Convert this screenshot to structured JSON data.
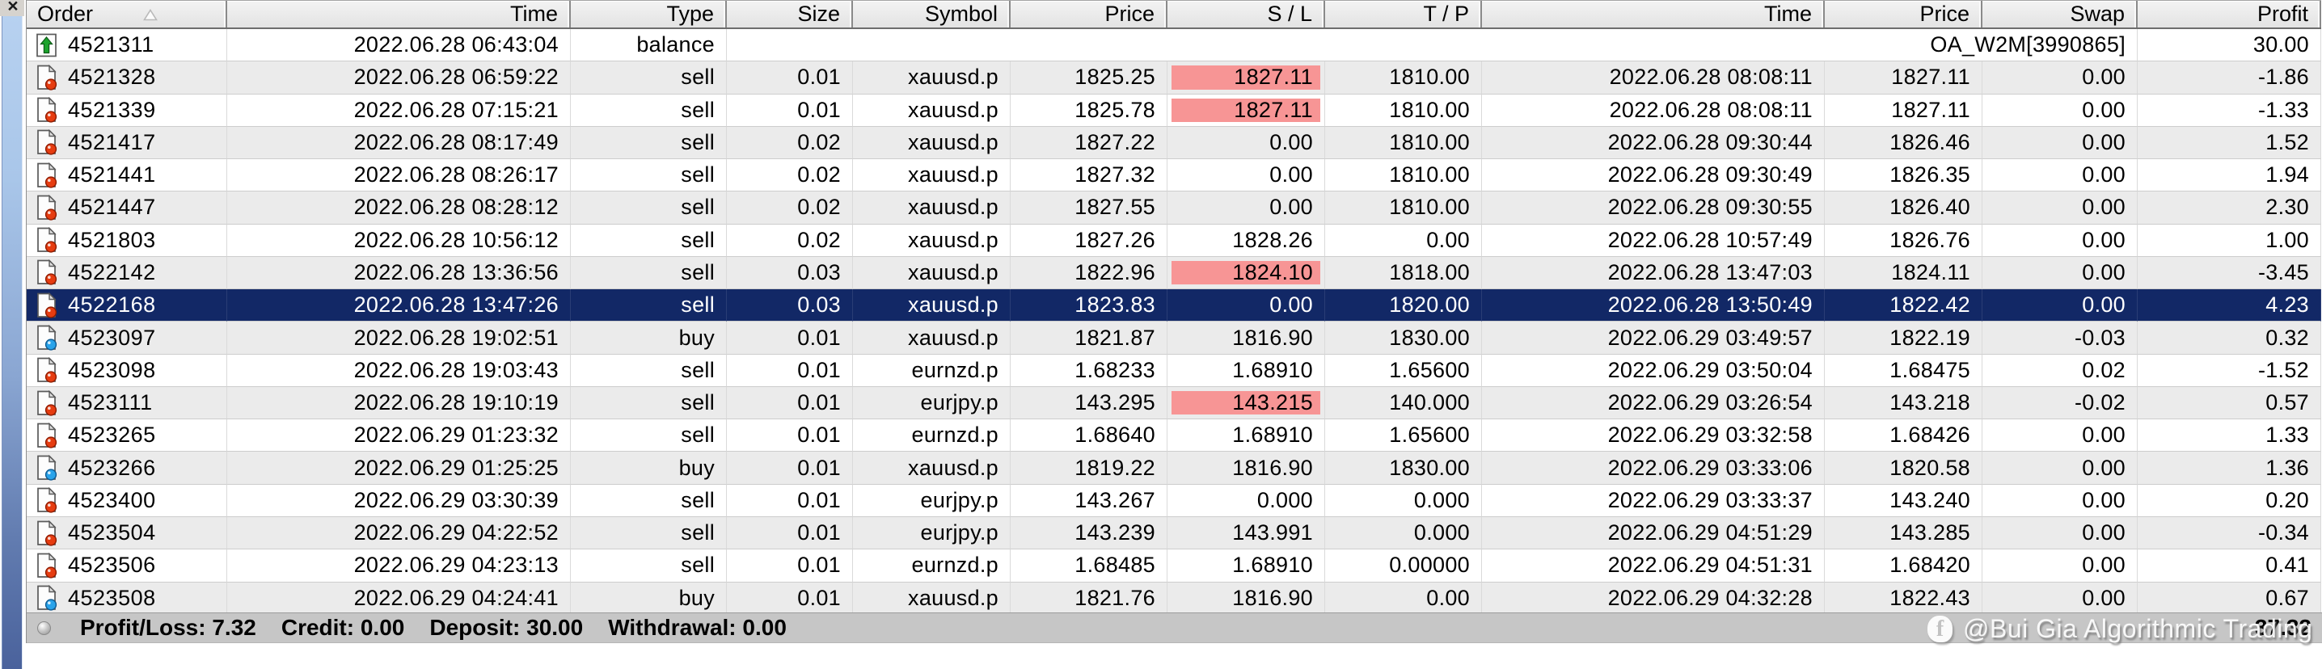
{
  "panel": {
    "close_button": "×"
  },
  "account_history": {
    "sort": {
      "column": "Order",
      "direction": "asc"
    },
    "columns": [
      {
        "id": "order",
        "label": "Order",
        "align": "left"
      },
      {
        "id": "open_time",
        "label": "Time",
        "align": "right"
      },
      {
        "id": "type",
        "label": "Type",
        "align": "right"
      },
      {
        "id": "size",
        "label": "Size",
        "align": "right"
      },
      {
        "id": "symbol",
        "label": "Symbol",
        "align": "right"
      },
      {
        "id": "open_price",
        "label": "Price",
        "align": "right"
      },
      {
        "id": "sl",
        "label": "S / L",
        "align": "right"
      },
      {
        "id": "tp",
        "label": "T / P",
        "align": "right"
      },
      {
        "id": "close_time",
        "label": "Time",
        "align": "right"
      },
      {
        "id": "close_price",
        "label": "Price",
        "align": "right"
      },
      {
        "id": "swap",
        "label": "Swap",
        "align": "right"
      },
      {
        "id": "profit",
        "label": "Profit",
        "align": "right"
      }
    ],
    "rows": [
      {
        "order": "4521311",
        "icon": "balance-order-icon",
        "open_time": "2022.06.28 06:43:04",
        "type": "balance",
        "size": "",
        "symbol": "",
        "open_price": "",
        "sl": "",
        "sl_hit": false,
        "tp": "",
        "close_time": "",
        "close_price": "",
        "swap": "OA_W2M[3990865]",
        "profit": "30.00",
        "selected": false
      },
      {
        "order": "4521328",
        "icon": "sell-order-icon",
        "open_time": "2022.06.28 06:59:22",
        "type": "sell",
        "size": "0.01",
        "symbol": "xauusd.p",
        "open_price": "1825.25",
        "sl": "1827.11",
        "sl_hit": true,
        "tp": "1810.00",
        "close_time": "2022.06.28 08:08:11",
        "close_price": "1827.11",
        "swap": "0.00",
        "profit": "-1.86",
        "selected": false
      },
      {
        "order": "4521339",
        "icon": "sell-order-icon",
        "open_time": "2022.06.28 07:15:21",
        "type": "sell",
        "size": "0.01",
        "symbol": "xauusd.p",
        "open_price": "1825.78",
        "sl": "1827.11",
        "sl_hit": true,
        "tp": "1810.00",
        "close_time": "2022.06.28 08:08:11",
        "close_price": "1827.11",
        "swap": "0.00",
        "profit": "-1.33",
        "selected": false
      },
      {
        "order": "4521417",
        "icon": "sell-order-icon",
        "open_time": "2022.06.28 08:17:49",
        "type": "sell",
        "size": "0.02",
        "symbol": "xauusd.p",
        "open_price": "1827.22",
        "sl": "0.00",
        "sl_hit": false,
        "tp": "1810.00",
        "close_time": "2022.06.28 09:30:44",
        "close_price": "1826.46",
        "swap": "0.00",
        "profit": "1.52",
        "selected": false
      },
      {
        "order": "4521441",
        "icon": "sell-order-icon",
        "open_time": "2022.06.28 08:26:17",
        "type": "sell",
        "size": "0.02",
        "symbol": "xauusd.p",
        "open_price": "1827.32",
        "sl": "0.00",
        "sl_hit": false,
        "tp": "1810.00",
        "close_time": "2022.06.28 09:30:49",
        "close_price": "1826.35",
        "swap": "0.00",
        "profit": "1.94",
        "selected": false
      },
      {
        "order": "4521447",
        "icon": "sell-order-icon",
        "open_time": "2022.06.28 08:28:12",
        "type": "sell",
        "size": "0.02",
        "symbol": "xauusd.p",
        "open_price": "1827.55",
        "sl": "0.00",
        "sl_hit": false,
        "tp": "1810.00",
        "close_time": "2022.06.28 09:30:55",
        "close_price": "1826.40",
        "swap": "0.00",
        "profit": "2.30",
        "selected": false
      },
      {
        "order": "4521803",
        "icon": "sell-order-icon",
        "open_time": "2022.06.28 10:56:12",
        "type": "sell",
        "size": "0.02",
        "symbol": "xauusd.p",
        "open_price": "1827.26",
        "sl": "1828.26",
        "sl_hit": false,
        "tp": "0.00",
        "close_time": "2022.06.28 10:57:49",
        "close_price": "1826.76",
        "swap": "0.00",
        "profit": "1.00",
        "selected": false
      },
      {
        "order": "4522142",
        "icon": "sell-order-icon",
        "open_time": "2022.06.28 13:36:56",
        "type": "sell",
        "size": "0.03",
        "symbol": "xauusd.p",
        "open_price": "1822.96",
        "sl": "1824.10",
        "sl_hit": true,
        "tp": "1818.00",
        "close_time": "2022.06.28 13:47:03",
        "close_price": "1824.11",
        "swap": "0.00",
        "profit": "-3.45",
        "selected": false
      },
      {
        "order": "4522168",
        "icon": "sell-order-icon",
        "open_time": "2022.06.28 13:47:26",
        "type": "sell",
        "size": "0.03",
        "symbol": "xauusd.p",
        "open_price": "1823.83",
        "sl": "0.00",
        "sl_hit": false,
        "tp": "1820.00",
        "close_time": "2022.06.28 13:50:49",
        "close_price": "1822.42",
        "swap": "0.00",
        "profit": "4.23",
        "selected": true
      },
      {
        "order": "4523097",
        "icon": "buy-order-icon",
        "open_time": "2022.06.28 19:02:51",
        "type": "buy",
        "size": "0.01",
        "symbol": "xauusd.p",
        "open_price": "1821.87",
        "sl": "1816.90",
        "sl_hit": false,
        "tp": "1830.00",
        "close_time": "2022.06.29 03:49:57",
        "close_price": "1822.19",
        "swap": "-0.03",
        "profit": "0.32",
        "selected": false
      },
      {
        "order": "4523098",
        "icon": "sell-order-icon",
        "open_time": "2022.06.28 19:03:43",
        "type": "sell",
        "size": "0.01",
        "symbol": "eurnzd.p",
        "open_price": "1.68233",
        "sl": "1.68910",
        "sl_hit": false,
        "tp": "1.65600",
        "close_time": "2022.06.29 03:50:04",
        "close_price": "1.68475",
        "swap": "0.02",
        "profit": "-1.52",
        "selected": false
      },
      {
        "order": "4523111",
        "icon": "sell-order-icon",
        "open_time": "2022.06.28 19:10:19",
        "type": "sell",
        "size": "0.01",
        "symbol": "eurjpy.p",
        "open_price": "143.295",
        "sl": "143.215",
        "sl_hit": true,
        "tp": "140.000",
        "close_time": "2022.06.29 03:26:54",
        "close_price": "143.218",
        "swap": "-0.02",
        "profit": "0.57",
        "selected": false
      },
      {
        "order": "4523265",
        "icon": "sell-order-icon",
        "open_time": "2022.06.29 01:23:32",
        "type": "sell",
        "size": "0.01",
        "symbol": "eurnzd.p",
        "open_price": "1.68640",
        "sl": "1.68910",
        "sl_hit": false,
        "tp": "1.65600",
        "close_time": "2022.06.29 03:32:58",
        "close_price": "1.68426",
        "swap": "0.00",
        "profit": "1.33",
        "selected": false
      },
      {
        "order": "4523266",
        "icon": "buy-order-icon",
        "open_time": "2022.06.29 01:25:25",
        "type": "buy",
        "size": "0.01",
        "symbol": "xauusd.p",
        "open_price": "1819.22",
        "sl": "1816.90",
        "sl_hit": false,
        "tp": "1830.00",
        "close_time": "2022.06.29 03:33:06",
        "close_price": "1820.58",
        "swap": "0.00",
        "profit": "1.36",
        "selected": false
      },
      {
        "order": "4523400",
        "icon": "sell-order-icon",
        "open_time": "2022.06.29 03:30:39",
        "type": "sell",
        "size": "0.01",
        "symbol": "eurjpy.p",
        "open_price": "143.267",
        "sl": "0.000",
        "sl_hit": false,
        "tp": "0.000",
        "close_time": "2022.06.29 03:33:37",
        "close_price": "143.240",
        "swap": "0.00",
        "profit": "0.20",
        "selected": false
      },
      {
        "order": "4523504",
        "icon": "sell-order-icon",
        "open_time": "2022.06.29 04:22:52",
        "type": "sell",
        "size": "0.01",
        "symbol": "eurjpy.p",
        "open_price": "143.239",
        "sl": "143.991",
        "sl_hit": false,
        "tp": "0.000",
        "close_time": "2022.06.29 04:51:29",
        "close_price": "143.285",
        "swap": "0.00",
        "profit": "-0.34",
        "selected": false
      },
      {
        "order": "4523506",
        "icon": "sell-order-icon",
        "open_time": "2022.06.29 04:23:13",
        "type": "sell",
        "size": "0.01",
        "symbol": "eurnzd.p",
        "open_price": "1.68485",
        "sl": "1.68910",
        "sl_hit": false,
        "tp": "0.00000",
        "close_time": "2022.06.29 04:51:31",
        "close_price": "1.68420",
        "swap": "0.00",
        "profit": "0.41",
        "selected": false
      },
      {
        "order": "4523508",
        "icon": "buy-order-icon",
        "open_time": "2022.06.29 04:24:41",
        "type": "buy",
        "size": "0.01",
        "symbol": "xauusd.p",
        "open_price": "1821.76",
        "sl": "1816.90",
        "sl_hit": false,
        "tp": "0.00",
        "close_time": "2022.06.29 04:32:28",
        "close_price": "1822.43",
        "swap": "0.00",
        "profit": "0.67",
        "selected": false
      }
    ]
  },
  "summary": {
    "items": [
      {
        "label": "Profit/Loss:",
        "value": "7.32"
      },
      {
        "label": "Credit:",
        "value": "0.00"
      },
      {
        "label": "Deposit:",
        "value": "30.00"
      },
      {
        "label": "Withdrawal:",
        "value": "0.00"
      }
    ],
    "total": "37.32"
  },
  "watermark": {
    "icon": "facebook",
    "text": "@Bui Gia Algorithmic Trading"
  },
  "colors": {
    "selection_bg": "#122866",
    "selection_text": "#ffffff",
    "sl_hit_bg": "#f79595",
    "row_bg": "#ffffff",
    "row_alt_bg": "#ebebeb",
    "summary_bg": "#c6c6c6",
    "sell_icon_dot": "#e63c10",
    "buy_icon_dot": "#29a3ea",
    "balance_icon_arrow": "#1ca32c",
    "panel_strip_top": "#b7d1f0",
    "panel_strip_bottom": "#4a629c"
  }
}
